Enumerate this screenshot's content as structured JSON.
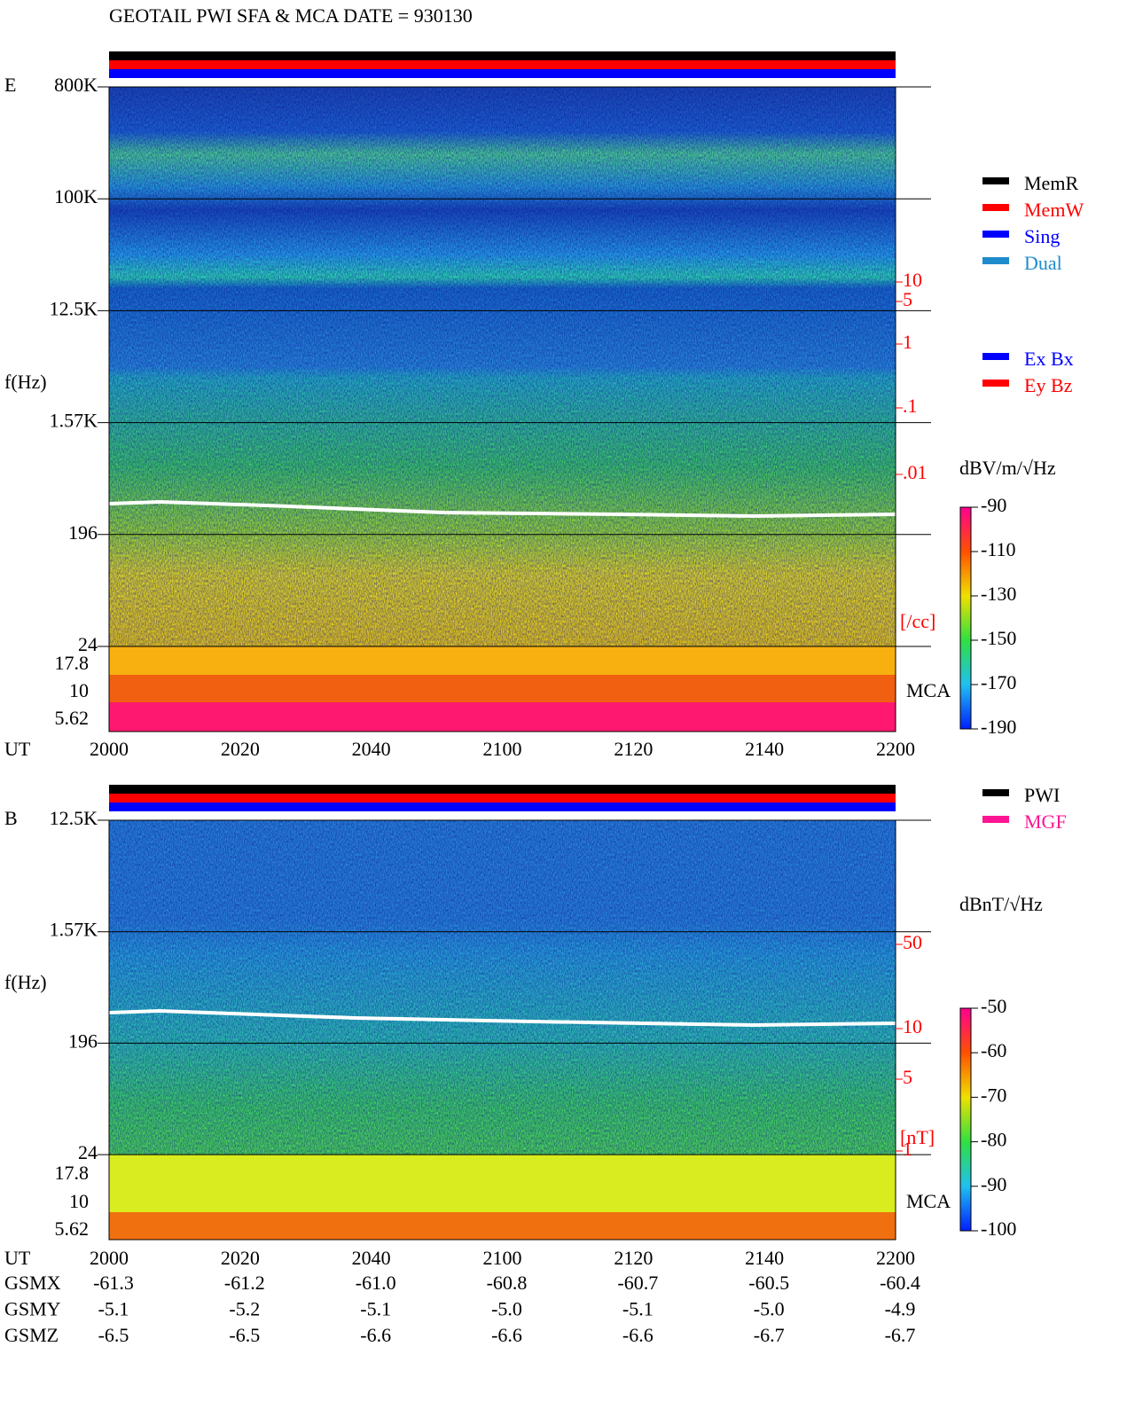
{
  "title": "GEOTAIL  PWI SFA & MCA   DATE = 930130",
  "panels": [
    {
      "label": "E",
      "y_label": "f(Hz)",
      "freq_ticks": [
        "800K",
        "100K",
        "12.5K",
        "1.57K",
        "196",
        "24"
      ],
      "mca_ticks": [
        "17.8",
        "10",
        "5.62"
      ],
      "mca_label": "MCA",
      "x_label": "UT",
      "x_ticks": [
        "2000",
        "2020",
        "2040",
        "2100",
        "2120",
        "2140",
        "2200"
      ],
      "right_ticks": [
        "10",
        "5",
        "1",
        ".1",
        ".01"
      ],
      "right_unit": "[/cc]",
      "colorbar_unit": "dBV/m/√Hz",
      "colorbar_ticks": [
        "-90",
        "-110",
        "-130",
        "-150",
        "-170",
        "-190"
      ]
    },
    {
      "label": "B",
      "y_label": "f(Hz)",
      "freq_ticks": [
        "12.5K",
        "1.57K",
        "196",
        "24"
      ],
      "mca_ticks": [
        "17.8",
        "10",
        "5.62"
      ],
      "mca_label": "MCA",
      "x_label": "UT",
      "x_ticks": [
        "2000",
        "2020",
        "2040",
        "2100",
        "2120",
        "2140",
        "2200"
      ],
      "right_ticks": [
        "50",
        "10",
        "5",
        "1"
      ],
      "right_unit": "[nT]",
      "colorbar_unit": "dBnT/√Hz",
      "colorbar_ticks": [
        "-50",
        "-60",
        "-70",
        "-80",
        "-90",
        "-100"
      ]
    }
  ],
  "legend_mode": [
    {
      "name": "MemR",
      "color": "#000000"
    },
    {
      "name": "MemW",
      "color": "#ff0000"
    },
    {
      "name": "Sing",
      "color": "#0000ff"
    },
    {
      "name": "Dual",
      "color": "#1e8ccc"
    }
  ],
  "legend_ant": [
    {
      "name": "Ex Bx",
      "color": "#0000ff"
    },
    {
      "name": "Ey Bz",
      "color": "#ff0000"
    }
  ],
  "legend_src": [
    {
      "name": "PWI",
      "color": "#000000"
    },
    {
      "name": "MGF",
      "color": "#ff1493"
    }
  ],
  "orbit": [
    {
      "name": "GSMX",
      "values": [
        "-61.3",
        "-61.2",
        "-61.0",
        "-60.8",
        "-60.7",
        "-60.5",
        "-60.4"
      ]
    },
    {
      "name": "GSMY",
      "values": [
        "-5.1",
        "-5.2",
        "-5.1",
        "-5.0",
        "-5.1",
        "-5.0",
        "-4.9"
      ]
    },
    {
      "name": "GSMZ",
      "values": [
        "-6.5",
        "-6.5",
        "-6.6",
        "-6.6",
        "-6.6",
        "-6.7",
        "-6.7"
      ]
    }
  ]
}
